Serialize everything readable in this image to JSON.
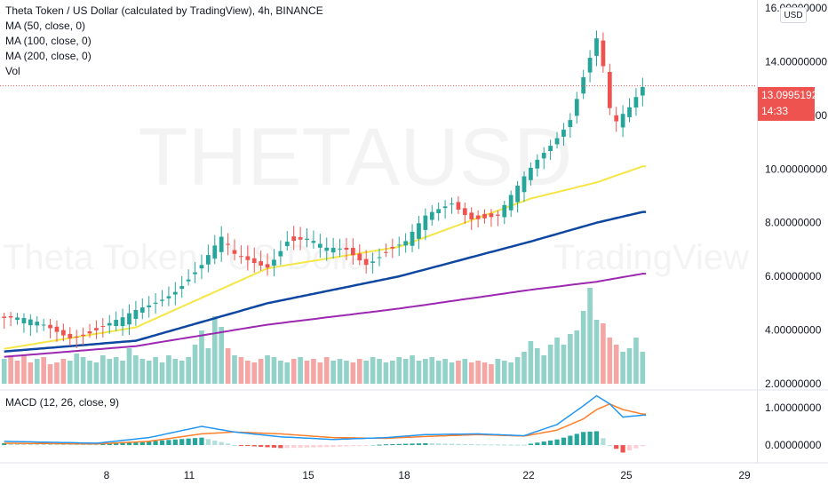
{
  "title": "Theta Token / US Dollar (calculated by TradingView), 4h, BINANCE",
  "indicators": [
    "MA (50, close, 0)",
    "MA (100, close, 0)",
    "MA (200, close, 0)",
    "Vol"
  ],
  "macd_label": "MACD (12, 26, close, 9)",
  "currency": "USD",
  "last_price": {
    "value": "13.09951924",
    "countdown": "14:33"
  },
  "watermark": {
    "symbol": "THETAUSD",
    "name": "Theta Token / US Dollar",
    "brand": "TradingView"
  },
  "colors": {
    "up": "#26a69a",
    "down": "#ef5350",
    "vol_up": "#92d2c9",
    "vol_down": "#f4a6a5",
    "ma50": "#f5e645",
    "ma100": "#0d47a1",
    "ma200": "#9c27b0",
    "macd": "#2196f3",
    "signal": "#ff7f2a",
    "hist_up": "#26a69a",
    "hist_down": "#ef5350"
  },
  "chart_data": {
    "type": "candlestick",
    "timeframe": "4h",
    "x_ticks": [
      "8",
      "11",
      "15",
      "18",
      "22",
      "25",
      "29"
    ],
    "price_axis_ticks": [
      "16.00000000",
      "14.00000000",
      "12.00000000",
      "10.00000000",
      "8.00000000",
      "6.00000000",
      "4.00000000",
      "2.00000000"
    ],
    "macd_axis_ticks": [
      "1.00000000",
      "0.00000000"
    ],
    "y_range": [
      1.8,
      16.3
    ],
    "macd_range": [
      -0.45,
      1.45
    ],
    "close_keypoints": [
      [
        0,
        4.45
      ],
      [
        6,
        4.1
      ],
      [
        10,
        3.85
      ],
      [
        14,
        4.05
      ],
      [
        18,
        4.3
      ],
      [
        22,
        4.9
      ],
      [
        26,
        5.6
      ],
      [
        30,
        6.4
      ],
      [
        33,
        7.3
      ],
      [
        35,
        6.7
      ],
      [
        37,
        6.6
      ],
      [
        40,
        6.5
      ],
      [
        43,
        7.4
      ],
      [
        46,
        7.3
      ],
      [
        49,
        6.9
      ],
      [
        52,
        7.0
      ],
      [
        55,
        6.6
      ],
      [
        58,
        7.0
      ],
      [
        61,
        7.2
      ],
      [
        64,
        8.1
      ],
      [
        68,
        8.8
      ],
      [
        71,
        8.3
      ],
      [
        75,
        8.2
      ],
      [
        78,
        9.2
      ],
      [
        81,
        10.3
      ],
      [
        84,
        11.3
      ],
      [
        86,
        12.0
      ],
      [
        88,
        13.5
      ],
      [
        90,
        14.8
      ],
      [
        91,
        13.7
      ],
      [
        92,
        12.1
      ],
      [
        93,
        11.6
      ],
      [
        95,
        12.2
      ],
      [
        97,
        13.1
      ]
    ],
    "ma50": [
      [
        0,
        3.3
      ],
      [
        20,
        4.1
      ],
      [
        40,
        6.3
      ],
      [
        60,
        7.1
      ],
      [
        80,
        8.9
      ],
      [
        90,
        9.5
      ],
      [
        97,
        10.1
      ]
    ],
    "ma100": [
      [
        0,
        3.2
      ],
      [
        20,
        3.6
      ],
      [
        40,
        5.0
      ],
      [
        60,
        6.0
      ],
      [
        80,
        7.3
      ],
      [
        90,
        8.0
      ],
      [
        97,
        8.4
      ]
    ],
    "ma200": [
      [
        0,
        3.0
      ],
      [
        20,
        3.4
      ],
      [
        40,
        4.2
      ],
      [
        60,
        4.8
      ],
      [
        80,
        5.5
      ],
      [
        90,
        5.8
      ],
      [
        97,
        6.1
      ]
    ],
    "volume": [
      1.4,
      1.6,
      1.3,
      1.6,
      1.2,
      1.4,
      1.5,
      1.1,
      1.2,
      1.4,
      1.3,
      1.7,
      1.5,
      1.3,
      1.2,
      1.6,
      1.4,
      1.5,
      1.3,
      2.0,
      1.6,
      1.4,
      1.3,
      1.5,
      1.2,
      1.6,
      1.4,
      1.3,
      1.5,
      2.2,
      3.0,
      2.0,
      3.8,
      3.2,
      2.0,
      1.6,
      1.5,
      1.3,
      1.2,
      1.4,
      1.6,
      1.5,
      1.3,
      1.2,
      1.4,
      1.5,
      1.3,
      1.4,
      1.2,
      1.5,
      1.3,
      1.4,
      1.3,
      1.2,
      1.4,
      1.3,
      1.5,
      1.4,
      1.2,
      1.3,
      1.5,
      1.4,
      1.6,
      1.3,
      1.4,
      1.5,
      1.3,
      1.4,
      1.2,
      1.3,
      1.4,
      1.2,
      1.3,
      1.2,
      1.1,
      1.4,
      1.3,
      1.2,
      1.5,
      1.8,
      2.4,
      2.0,
      1.6,
      2.2,
      2.6,
      2.2,
      2.8,
      3.0,
      4.1,
      5.4,
      3.6,
      3.4,
      2.6,
      2.2,
      1.8,
      2.0,
      2.6,
      1.8
    ],
    "macd": [
      [
        0,
        0.1
      ],
      [
        14,
        0.05
      ],
      [
        22,
        0.2
      ],
      [
        30,
        0.5
      ],
      [
        35,
        0.35
      ],
      [
        42,
        0.22
      ],
      [
        50,
        0.15
      ],
      [
        58,
        0.2
      ],
      [
        64,
        0.28
      ],
      [
        72,
        0.3
      ],
      [
        79,
        0.25
      ],
      [
        84,
        0.55
      ],
      [
        88,
        1.05
      ],
      [
        90,
        1.32
      ],
      [
        92,
        1.1
      ],
      [
        94,
        0.75
      ],
      [
        97,
        0.8
      ]
    ],
    "signal": [
      [
        0,
        0.05
      ],
      [
        14,
        0.03
      ],
      [
        22,
        0.1
      ],
      [
        30,
        0.3
      ],
      [
        35,
        0.35
      ],
      [
        42,
        0.3
      ],
      [
        50,
        0.2
      ],
      [
        58,
        0.18
      ],
      [
        64,
        0.23
      ],
      [
        72,
        0.28
      ],
      [
        79,
        0.24
      ],
      [
        84,
        0.4
      ],
      [
        88,
        0.7
      ],
      [
        90,
        0.95
      ],
      [
        92,
        1.1
      ],
      [
        94,
        0.95
      ],
      [
        97,
        0.83
      ]
    ]
  }
}
